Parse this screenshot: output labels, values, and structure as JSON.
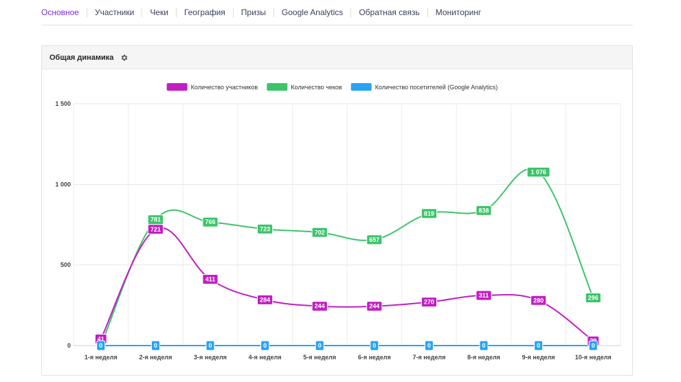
{
  "tabs": [
    "Основное",
    "Участники",
    "Чеки",
    "География",
    "Призы",
    "Google Analytics",
    "Обратная связь",
    "Мониторинг"
  ],
  "active_tab": 0,
  "panel": {
    "title": "Общая динамика",
    "settings_icon": "gear-icon"
  },
  "colors": {
    "accent": "#7a2ee0",
    "participants": "#c21ec2",
    "receipts": "#3cc46a",
    "visitors": "#27a2f5"
  },
  "chart_data": {
    "type": "line",
    "categories": [
      "1-я неделя",
      "2-я неделя",
      "3-я неделя",
      "4-я неделя",
      "5-я неделя",
      "6-я неделя",
      "7-я неделя",
      "8-я неделя",
      "9-я неделя",
      "10-я неделя"
    ],
    "series": [
      {
        "name": "Количество участников",
        "color": "#c21ec2",
        "values": [
          41,
          721,
          411,
          284,
          244,
          244,
          270,
          311,
          280,
          29
        ],
        "labels": [
          "41",
          "721",
          "411",
          "284",
          "244",
          "244",
          "270",
          "311",
          "280",
          "29"
        ]
      },
      {
        "name": "Количество чеков",
        "color": "#3cc46a",
        "values": [
          0,
          781,
          766,
          723,
          702,
          657,
          819,
          838,
          1076,
          296
        ],
        "labels": [
          "0",
          "781",
          "766",
          "723",
          "702",
          "657",
          "819",
          "838",
          "1 076",
          "296"
        ]
      },
      {
        "name": "Количество посетителей (Google Analytics)",
        "color": "#27a2f5",
        "values": [
          0,
          0,
          0,
          0,
          0,
          0,
          0,
          0,
          0,
          0
        ],
        "labels": [
          "0",
          "0",
          "0",
          "0",
          "0",
          "0",
          "0",
          "0",
          "0",
          "0"
        ]
      }
    ],
    "yticks": [
      0,
      500,
      1000,
      1500
    ],
    "ytick_labels": [
      "0",
      "500",
      "1 000",
      "1 500"
    ],
    "ylim": [
      0,
      1500
    ],
    "grid": true,
    "legend_position": "top-center",
    "smooth": true
  }
}
